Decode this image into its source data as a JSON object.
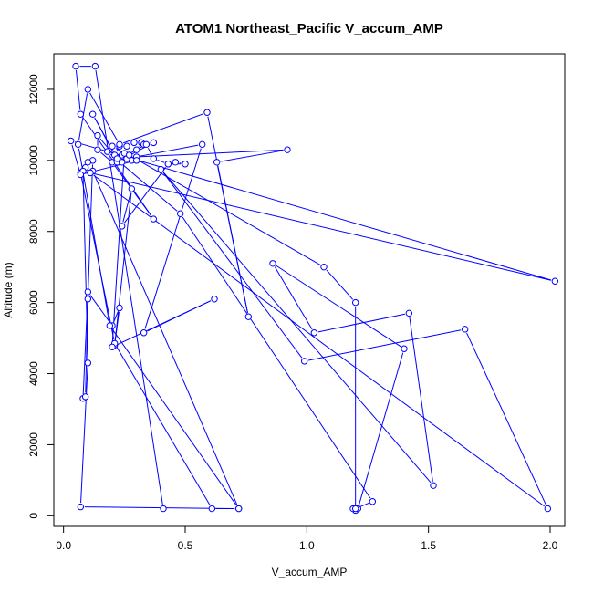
{
  "chart_data": {
    "type": "line",
    "title": "ATOM1 Northeast_Pacific V_accum_AMP",
    "xlabel": "V_accum_AMP",
    "ylabel": "Altitude (m)",
    "xlim": [
      -0.04,
      2.06
    ],
    "ylim": [
      -300,
      13000
    ],
    "x_ticks": [
      "0.0",
      "0.5",
      "1.0",
      "1.5",
      "2.0"
    ],
    "y_ticks": [
      "0",
      "2000",
      "4000",
      "6000",
      "8000",
      "10000",
      "12000"
    ],
    "colors": {
      "series": "#0000ff",
      "axis": "#000000"
    },
    "series": [
      {
        "x": [
          0.41,
          0.13,
          0.05,
          0.07,
          0.37,
          0.2,
          0.14,
          0.14,
          0.22,
          0.12,
          0.21,
          0.23,
          0.26,
          0.29,
          0.3,
          0.32,
          0.33,
          0.37,
          0.26,
          0.28,
          0.24,
          0.22,
          0.34,
          0.37,
          0.43,
          0.46,
          0.5,
          0.43,
          0.24,
          0.28,
          0.21,
          0.23,
          0.2,
          0.1,
          0.08,
          0.09,
          0.1,
          0.12,
          0.09,
          0.1,
          0.07,
          0.21,
          0.61,
          0.72,
          0.12,
          0.08,
          0.1,
          0.07,
          0.72,
          0.19,
          0.06,
          0.1,
          0.23,
          0.59,
          0.76,
          0.63,
          0.92,
          0.3,
          0.22,
          0.25,
          0.2,
          0.62,
          0.33,
          0.57,
          0.26,
          0.22,
          0.22,
          0.24,
          0.27,
          1.07,
          1.2,
          1.2,
          1.19,
          1.21,
          1.4,
          0.86,
          1.03,
          1.42,
          1.52,
          0.4,
          0.99,
          1.65,
          1.99,
          0.11,
          2.02,
          0.03,
          0.07,
          0.3,
          0.2,
          0.18,
          0.48,
          1.27,
          1.2
        ],
        "y": [
          200,
          12650,
          12650,
          11300,
          8350,
          9950,
          10300,
          10700,
          10050,
          11300,
          10150,
          10400,
          10400,
          10500,
          10300,
          10500,
          10450,
          10500,
          10100,
          10000,
          10150,
          10000,
          10450,
          10050,
          9900,
          9950,
          9900,
          9900,
          8150,
          9200,
          4800,
          5850,
          5350,
          6300,
          3300,
          3350,
          6100,
          10000,
          9800,
          9950,
          9650,
          4850,
          200,
          200,
          9700,
          9700,
          4300,
          250,
          200,
          5350,
          10450,
          12000,
          10450,
          11350,
          5600,
          9950,
          10300,
          10100,
          10000,
          10200,
          4750,
          6100,
          5150,
          10450,
          10050,
          9950,
          10050,
          9950,
          10150,
          7000,
          6000,
          150,
          200,
          200,
          4700,
          7100,
          5150,
          5700,
          850,
          9750,
          4350,
          5250,
          200,
          9650,
          6600,
          10550,
          9600,
          10000,
          10400,
          10250,
          8500,
          400,
          200
        ]
      }
    ]
  }
}
